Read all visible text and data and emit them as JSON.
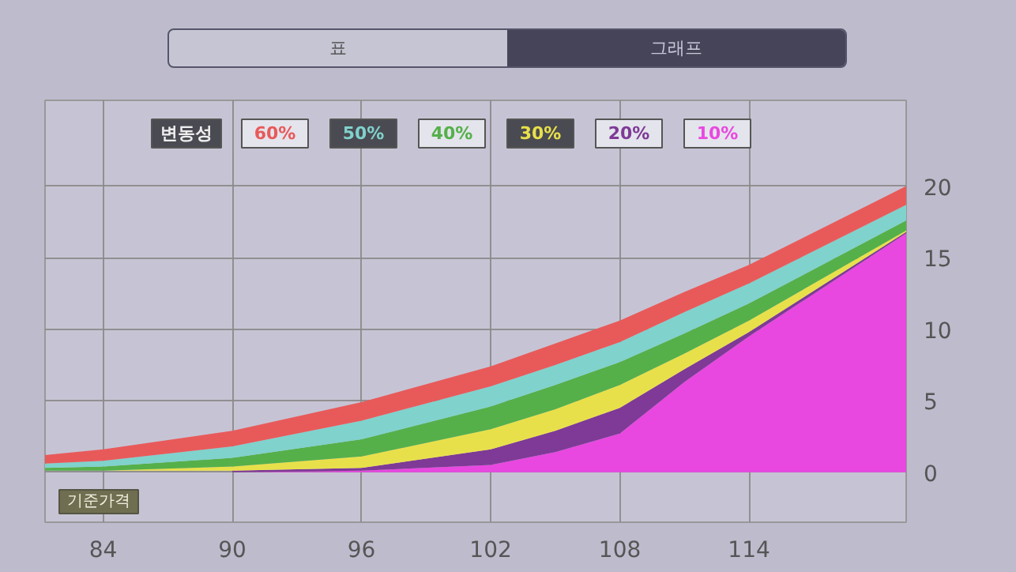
{
  "chart_data": {
    "type": "area",
    "xlabel": "기준가격",
    "legend_title": "변동성",
    "legend": "top",
    "grid": true,
    "annotations": [
      "표",
      "그래프"
    ],
    "x": [
      81.3,
      84,
      90,
      96,
      102,
      105,
      108,
      111,
      114,
      121.3
    ],
    "xlim": [
      81.3,
      121.3
    ],
    "ylim": [
      -3.5,
      26
    ],
    "xticks": [
      84,
      90,
      96,
      102,
      108,
      114
    ],
    "yticks": [
      0,
      5,
      10,
      15,
      20
    ],
    "series": [
      {
        "name": "60%",
        "color": "#e85a5a",
        "values": [
          1.2,
          1.6,
          2.9,
          4.9,
          7.4,
          9.0,
          10.6,
          12.6,
          14.5,
          20.0
        ]
      },
      {
        "name": "50%",
        "color": "#80d2cc",
        "values": [
          0.6,
          0.8,
          1.8,
          3.6,
          6.0,
          7.5,
          9.1,
          11.2,
          13.2,
          18.7
        ]
      },
      {
        "name": "40%",
        "color": "#55b04a",
        "values": [
          0.3,
          0.4,
          1.0,
          2.3,
          4.6,
          6.1,
          7.7,
          9.7,
          11.8,
          17.6
        ]
      },
      {
        "name": "30%",
        "color": "#e8e04a",
        "values": [
          0.1,
          0.1,
          0.4,
          1.1,
          3.0,
          4.4,
          6.1,
          8.3,
          10.6,
          16.9
        ]
      },
      {
        "name": "20%",
        "color": "#7e3a96",
        "values": [
          null,
          null,
          0.1,
          0.3,
          1.6,
          2.9,
          4.5,
          7.2,
          9.8,
          16.8
        ]
      },
      {
        "name": "10%",
        "color": "#e848e0",
        "values": [
          0,
          0,
          0,
          0.1,
          0.5,
          1.4,
          2.7,
          6.3,
          9.5,
          16.7
        ]
      }
    ]
  }
}
